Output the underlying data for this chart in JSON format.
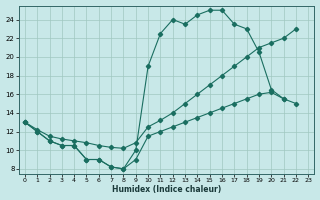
{
  "xlabel": "Humidex (Indice chaleur)",
  "bg_color": "#c8e8e8",
  "grid_color": "#a0c8c0",
  "line_color": "#1a6e60",
  "xlim": [
    -0.5,
    23.5
  ],
  "ylim": [
    7.5,
    25.5
  ],
  "xticks": [
    0,
    1,
    2,
    3,
    4,
    5,
    6,
    7,
    8,
    9,
    10,
    11,
    12,
    13,
    14,
    15,
    16,
    17,
    18,
    19,
    20,
    21,
    22,
    23
  ],
  "yticks": [
    8,
    10,
    12,
    14,
    16,
    18,
    20,
    22,
    24
  ],
  "s1_x": [
    0,
    1,
    2,
    3,
    4,
    5,
    6,
    7,
    8,
    9,
    10,
    11,
    12,
    13,
    14,
    15,
    16,
    17,
    18,
    19,
    20,
    21
  ],
  "s1_y": [
    13.0,
    12.0,
    11.0,
    10.5,
    10.5,
    9.0,
    9.0,
    8.2,
    8.0,
    10.0,
    19.0,
    22.5,
    24.0,
    23.5,
    24.5,
    25.0,
    25.0,
    23.5,
    23.0,
    20.5,
    16.5,
    15.5
  ],
  "s2_x": [
    0,
    1,
    2,
    3,
    4,
    5,
    6,
    7,
    8,
    9,
    10,
    11,
    12,
    13,
    14,
    15,
    16,
    17,
    18,
    19,
    20,
    21,
    22
  ],
  "s2_y": [
    13.0,
    12.2,
    11.5,
    11.2,
    11.0,
    10.8,
    10.5,
    10.3,
    10.2,
    10.8,
    12.5,
    13.2,
    14.0,
    15.0,
    16.0,
    17.0,
    18.0,
    19.0,
    20.0,
    21.0,
    21.5,
    22.0,
    23.0
  ],
  "s3_x": [
    0,
    1,
    2,
    3,
    4,
    5,
    6,
    7,
    8,
    9,
    10,
    11,
    12,
    13,
    14,
    15,
    16,
    17,
    18,
    19,
    20,
    21,
    22
  ],
  "s3_y": [
    13.0,
    12.0,
    11.0,
    10.5,
    10.5,
    9.0,
    9.0,
    8.2,
    8.0,
    9.0,
    11.5,
    12.0,
    12.5,
    13.0,
    13.5,
    14.0,
    14.5,
    15.0,
    15.5,
    16.0,
    16.2,
    15.5,
    15.0
  ]
}
